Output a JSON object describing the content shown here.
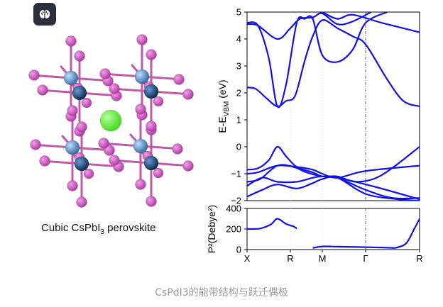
{
  "toolbar": {
    "icon": "brain-icon"
  },
  "structure": {
    "label_prefix": "Cubic CsPbI",
    "label_subscript": "3",
    "label_suffix": " perovskite",
    "colors": {
      "iodine": "#b43ca8",
      "lead": "#3a6ea5",
      "cesium": "#44dd22",
      "bond": "#c05aa8"
    }
  },
  "band_chart": {
    "ylabel_main": "E-E",
    "ylabel_sub": "VBM",
    "ylabel_unit": " (eV)",
    "y_ticks": [
      "5",
      "4",
      "3",
      "2",
      "1",
      "0",
      "−1",
      "−2"
    ],
    "x_ticks": [
      "X",
      "R",
      "M",
      "Γ",
      "R"
    ],
    "line_color": "#1212e6"
  },
  "dipole_chart": {
    "ylabel": "P²(Debye²)",
    "y_ticks": [
      "400",
      "200",
      "0"
    ]
  },
  "chart_data": [
    {
      "type": "line",
      "ylim": [
        -2,
        5
      ],
      "x_ticks": [
        "X",
        "R",
        "M",
        "Γ",
        "R"
      ],
      "series": [
        {
          "values": [
            [
              0,
              2.2
            ],
            [
              0.2,
              2.15
            ],
            [
              0.45,
              1.8
            ],
            [
              0.7,
              1.5
            ],
            [
              0.9,
              1.7
            ],
            [
              1.15,
              1.9
            ],
            [
              1.45,
              3.2
            ],
            [
              1.7,
              4.1
            ],
            [
              2.0,
              4.7
            ],
            [
              2.35,
              4.4
            ],
            [
              2.7,
              4.1
            ],
            [
              3.0,
              3.8
            ],
            [
              3.4,
              2.5
            ],
            [
              3.7,
              1.7
            ],
            [
              4.0,
              1.5
            ]
          ]
        },
        {
          "values": [
            [
              0,
              4.6
            ],
            [
              0.25,
              4.5
            ],
            [
              0.5,
              3.3
            ],
            [
              0.7,
              1.5
            ],
            [
              0.9,
              2.3
            ],
            [
              1.2,
              4.6
            ],
            [
              1.45,
              4.75
            ],
            [
              1.7,
              4.75
            ],
            [
              2.0,
              3.4
            ],
            [
              2.35,
              3.15
            ],
            [
              2.7,
              3.6
            ],
            [
              3.0,
              4.6
            ],
            [
              3.4,
              5.0
            ]
          ]
        },
        {
          "values": [
            [
              0,
              4.55
            ],
            [
              0.25,
              4.5
            ],
            [
              0.7,
              4.0
            ],
            [
              1.0,
              4.4
            ],
            [
              1.3,
              4.75
            ],
            [
              1.7,
              4.8
            ],
            [
              2.0,
              4.95
            ],
            [
              2.35,
              4.55
            ],
            [
              2.7,
              4.65
            ],
            [
              3.1,
              5.0
            ]
          ]
        },
        {
          "values": [
            [
              2.0,
              5.0
            ],
            [
              2.35,
              4.75
            ],
            [
              2.7,
              4.9
            ],
            [
              3.3,
              4.6
            ],
            [
              4.0,
              4.25
            ]
          ]
        },
        {
          "values": [
            [
              0,
              -0.85
            ],
            [
              0.25,
              -0.8
            ],
            [
              0.5,
              -0.5
            ],
            [
              0.7,
              0.0
            ],
            [
              0.9,
              -0.35
            ],
            [
              1.2,
              -0.75
            ],
            [
              1.7,
              -0.95
            ],
            [
              2.0,
              -1.1
            ],
            [
              2.35,
              -1.1
            ],
            [
              2.8,
              -1.3
            ],
            [
              3.3,
              -1.05
            ],
            [
              4.0,
              0.0
            ]
          ]
        },
        {
          "values": [
            [
              0,
              -1.0
            ],
            [
              0.25,
              -0.95
            ],
            [
              0.7,
              -0.7
            ],
            [
              1.2,
              -0.75
            ],
            [
              1.7,
              -0.85
            ],
            [
              2.0,
              -1.0
            ],
            [
              2.35,
              -1.15
            ],
            [
              3.0,
              -0.9
            ],
            [
              4.0,
              -0.7
            ]
          ]
        },
        {
          "values": [
            [
              0,
              -1.3
            ],
            [
              0.3,
              -1.2
            ],
            [
              0.7,
              -0.7
            ],
            [
              1.1,
              -0.75
            ],
            [
              1.5,
              -0.95
            ],
            [
              2.0,
              -1.1
            ],
            [
              2.35,
              -1.15
            ],
            [
              3.2,
              -1.5
            ],
            [
              4.0,
              -1.95
            ]
          ]
        },
        {
          "values": [
            [
              0,
              -1.45
            ],
            [
              0.35,
              -1.15
            ],
            [
              0.7,
              -1.3
            ],
            [
              1.2,
              -1.3
            ],
            [
              1.7,
              -1.15
            ],
            [
              2.0,
              -1.1
            ],
            [
              2.35,
              -1.15
            ],
            [
              3.0,
              -1.6
            ],
            [
              3.5,
              -1.9
            ],
            [
              4.0,
              -1.9
            ]
          ]
        },
        {
          "values": [
            [
              0,
              -1.85
            ],
            [
              0.35,
              -1.6
            ],
            [
              0.7,
              -1.4
            ],
            [
              1.2,
              -1.55
            ],
            [
              1.7,
              -1.35
            ],
            [
              2.0,
              -1.2
            ],
            [
              2.35,
              -1.15
            ],
            [
              3.0,
              -1.75
            ],
            [
              3.6,
              -1.95
            ],
            [
              4.0,
              -2.0
            ]
          ]
        }
      ]
    },
    {
      "type": "line",
      "ylim": [
        0,
        400
      ],
      "x_ticks": [
        "X",
        "R",
        "M",
        "Γ",
        "R"
      ],
      "series": [
        {
          "values": [
            [
              0,
              200
            ],
            [
              0.3,
              205
            ],
            [
              0.55,
              245
            ],
            [
              0.7,
              300
            ],
            [
              0.9,
              250
            ],
            [
              1.1,
              225
            ],
            [
              1.2,
              205
            ]
          ]
        },
        {
          "values": [
            [
              1.7,
              15
            ],
            [
              2.0,
              30
            ],
            [
              2.35,
              28
            ],
            [
              2.8,
              25
            ],
            [
              3.3,
              20
            ],
            [
              3.55,
              15
            ]
          ]
        },
        {
          "values": [
            [
              3.55,
              15
            ],
            [
              3.75,
              60
            ],
            [
              3.9,
              200
            ],
            [
              4.0,
              300
            ]
          ]
        }
      ]
    }
  ],
  "caption": "CsPdI3的能带结构与跃迁偶极"
}
